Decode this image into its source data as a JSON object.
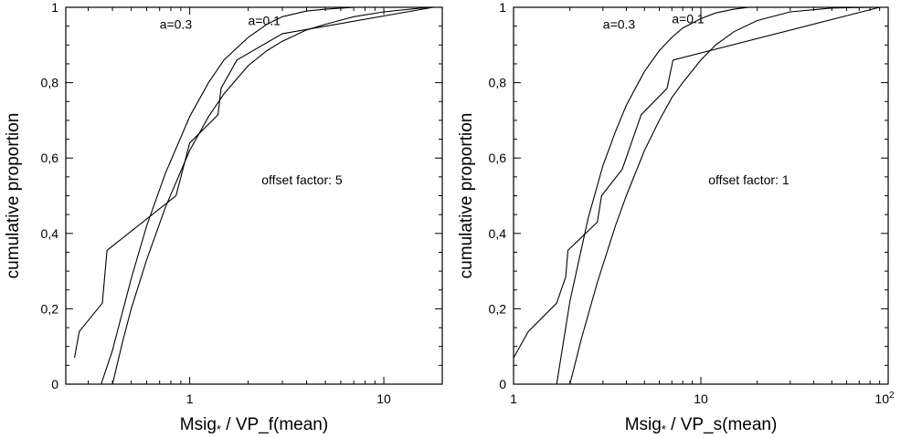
{
  "chart_data": [
    {
      "type": "line",
      "id": "left",
      "x_scale": "log",
      "xlim": [
        0.23,
        20
      ],
      "ylim": [
        0,
        1
      ],
      "xlabel_prefix": "Msig",
      "xlabel_sub": "*",
      "xlabel_suffix": " / VP_f(mean)",
      "ylabel": "cumulative proportion",
      "x_ticks": [
        {
          "value": 1,
          "label": "1"
        },
        {
          "value": 10,
          "label": "10"
        }
      ],
      "y_ticks": [
        {
          "value": 0,
          "label": "0"
        },
        {
          "value": 0.2,
          "label": "0,2"
        },
        {
          "value": 0.4,
          "label": "0,4"
        },
        {
          "value": 0.6,
          "label": "0,6"
        },
        {
          "value": 0.8,
          "label": "0,8"
        },
        {
          "value": 1,
          "label": "1"
        }
      ],
      "annotation": "offset factor: 5",
      "series": [
        {
          "kind": "empirical",
          "x": [
            0.255,
            0.27,
            0.355,
            0.375,
            0.85,
            1.0,
            1.4,
            1.45,
            1.75,
            3.0,
            18.0
          ],
          "y": [
            0.07,
            0.14,
            0.215,
            0.355,
            0.5,
            0.64,
            0.715,
            0.785,
            0.86,
            0.93,
            1.0
          ]
        },
        {
          "name": "a=0.3",
          "x": [
            0.35,
            0.4,
            0.5,
            0.6,
            0.75,
            1.0,
            1.25,
            1.5,
            2.0,
            2.5,
            3.0,
            4.0,
            5.0,
            7.0,
            10.0,
            15.0,
            18.0
          ],
          "y": [
            0.0,
            0.09,
            0.28,
            0.42,
            0.56,
            0.71,
            0.8,
            0.86,
            0.92,
            0.955,
            0.975,
            0.99,
            0.995,
            1.0,
            1.0,
            1.0,
            1.0
          ]
        },
        {
          "name": "a=0.1",
          "x": [
            0.4,
            0.45,
            0.5,
            0.6,
            0.75,
            1.0,
            1.25,
            1.5,
            2.0,
            2.5,
            3.0,
            4.0,
            5.0,
            7.0,
            10.0,
            15.0,
            18.0
          ],
          "y": [
            0.0,
            0.11,
            0.2,
            0.33,
            0.47,
            0.62,
            0.71,
            0.77,
            0.845,
            0.885,
            0.91,
            0.94,
            0.955,
            0.975,
            0.988,
            0.997,
            1.0
          ]
        }
      ],
      "labels": [
        {
          "text": "a=0.3",
          "x": 0.7,
          "y": 0.955
        },
        {
          "text": "a=0.1",
          "x": 2.0,
          "y": 0.965
        }
      ]
    },
    {
      "type": "line",
      "id": "right",
      "x_scale": "log",
      "xlim": [
        1,
        100
      ],
      "ylim": [
        0,
        1
      ],
      "xlabel_prefix": "Msig",
      "xlabel_sub": "*",
      "xlabel_suffix": " / VP_s(mean)",
      "ylabel": "cumulative proportion",
      "x_ticks": [
        {
          "value": 1,
          "label": "1"
        },
        {
          "value": 10,
          "label": "10"
        },
        {
          "value": 100,
          "label": "10",
          "sup": "2"
        }
      ],
      "y_ticks": [
        {
          "value": 0,
          "label": "0"
        },
        {
          "value": 0.2,
          "label": "0,2"
        },
        {
          "value": 0.4,
          "label": "0,4"
        },
        {
          "value": 0.6,
          "label": "0,6"
        },
        {
          "value": 0.8,
          "label": "0,8"
        },
        {
          "value": 1,
          "label": "1"
        }
      ],
      "annotation": "offset factor: 1",
      "series": [
        {
          "kind": "empirical",
          "x": [
            1.0,
            1.2,
            1.7,
            1.9,
            1.95,
            2.8,
            2.95,
            3.8,
            4.8,
            6.6,
            7.1,
            90.0
          ],
          "y": [
            0.07,
            0.14,
            0.215,
            0.285,
            0.355,
            0.43,
            0.5,
            0.57,
            0.715,
            0.785,
            0.86,
            1.0
          ]
        },
        {
          "name": "a=0.3",
          "x": [
            1.7,
            2.0,
            2.5,
            3.0,
            3.5,
            4.0,
            5.0,
            6.0,
            7.0,
            8.0,
            10.0,
            12.0,
            15.0,
            18.0
          ],
          "y": [
            0.0,
            0.22,
            0.44,
            0.58,
            0.67,
            0.74,
            0.83,
            0.885,
            0.92,
            0.945,
            0.97,
            0.985,
            0.995,
            1.0
          ]
        },
        {
          "name": "a=0.1",
          "x": [
            2.0,
            2.3,
            2.8,
            3.5,
            4.0,
            5.0,
            6.0,
            7.0,
            8.0,
            10.0,
            12.0,
            15.0,
            20.0,
            30.0,
            50.0,
            80.0,
            100.0
          ],
          "y": [
            0.0,
            0.12,
            0.27,
            0.42,
            0.5,
            0.62,
            0.7,
            0.76,
            0.8,
            0.86,
            0.9,
            0.935,
            0.965,
            0.988,
            0.998,
            1.0,
            1.0
          ]
        }
      ],
      "labels": [
        {
          "text": "a=0.3",
          "x": 3.0,
          "y": 0.955
        },
        {
          "text": "a=0.1",
          "x": 7.0,
          "y": 0.97
        }
      ]
    }
  ]
}
